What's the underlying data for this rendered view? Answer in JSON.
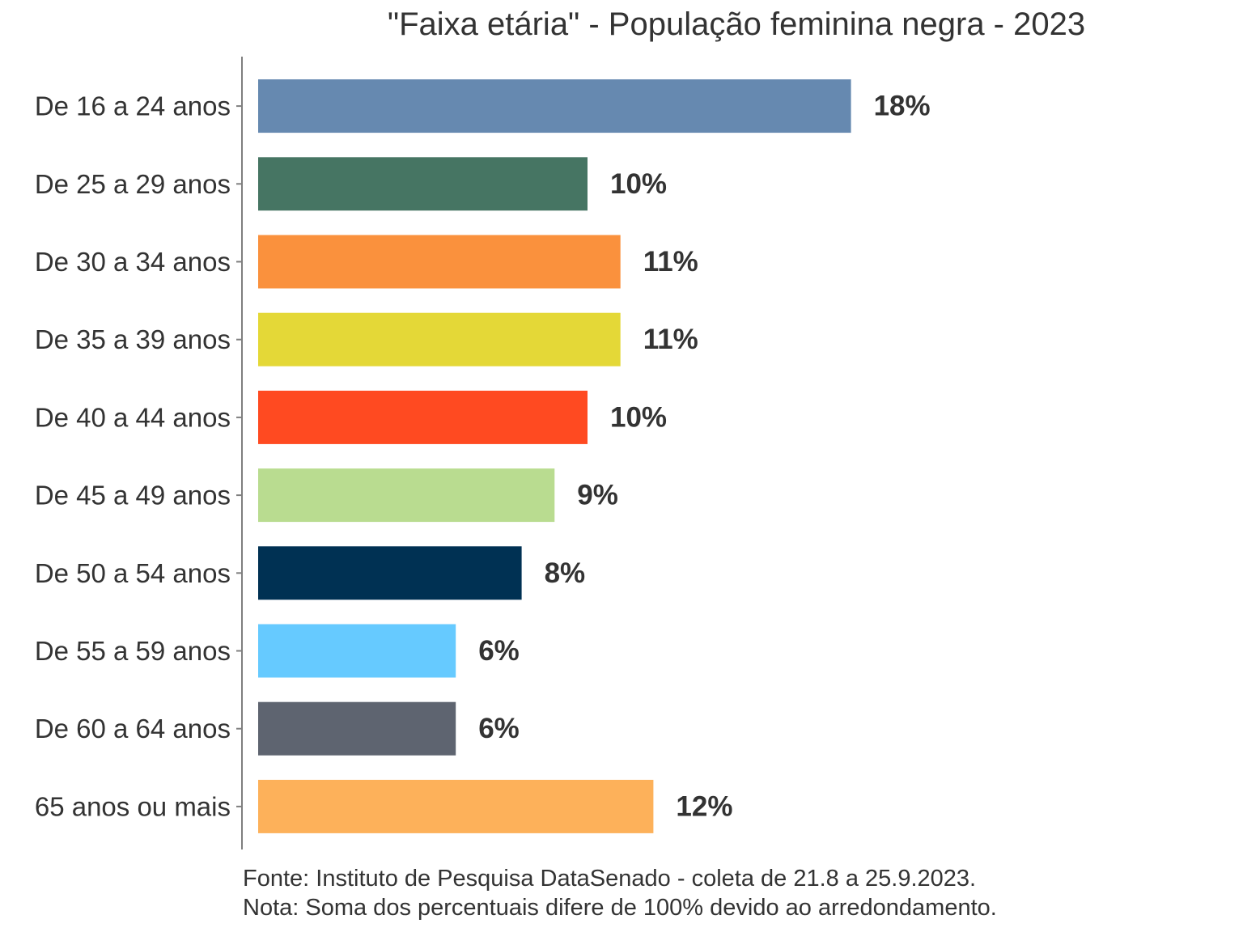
{
  "chart_data": {
    "type": "bar",
    "orientation": "horizontal",
    "title": "\"Faixa etária\" - População feminina negra - 2023",
    "categories": [
      "De 16 a 24 anos",
      "De 25 a 29 anos",
      "De 30 a 34 anos",
      "De 35 a 39 anos",
      "De 40 a 44 anos",
      "De 45 a 49 anos",
      "De 50 a 54 anos",
      "De 55 a 59 anos",
      "De 60 a 64 anos",
      "65 anos ou mais"
    ],
    "values": [
      18,
      10,
      11,
      11,
      10,
      9,
      8,
      6,
      6,
      12
    ],
    "value_labels": [
      "18%",
      "10%",
      "11%",
      "11%",
      "10%",
      "9%",
      "8%",
      "6%",
      "6%",
      "12%"
    ],
    "colors": [
      "#6689B0",
      "#467563",
      "#FA913D",
      "#E4D837",
      "#FF4A21",
      "#B9DC90",
      "#003153",
      "#66CAFF",
      "#5E6470",
      "#FDB15A"
    ],
    "xlabel": "",
    "ylabel": "",
    "grid": false,
    "legend": "none"
  },
  "footer": {
    "source": "Fonte: Instituto de Pesquisa DataSenado - coleta de 21.8 a 25.9.2023.",
    "note": "Nota: Soma dos percentuais difere de 100% devido ao arredondamento."
  }
}
